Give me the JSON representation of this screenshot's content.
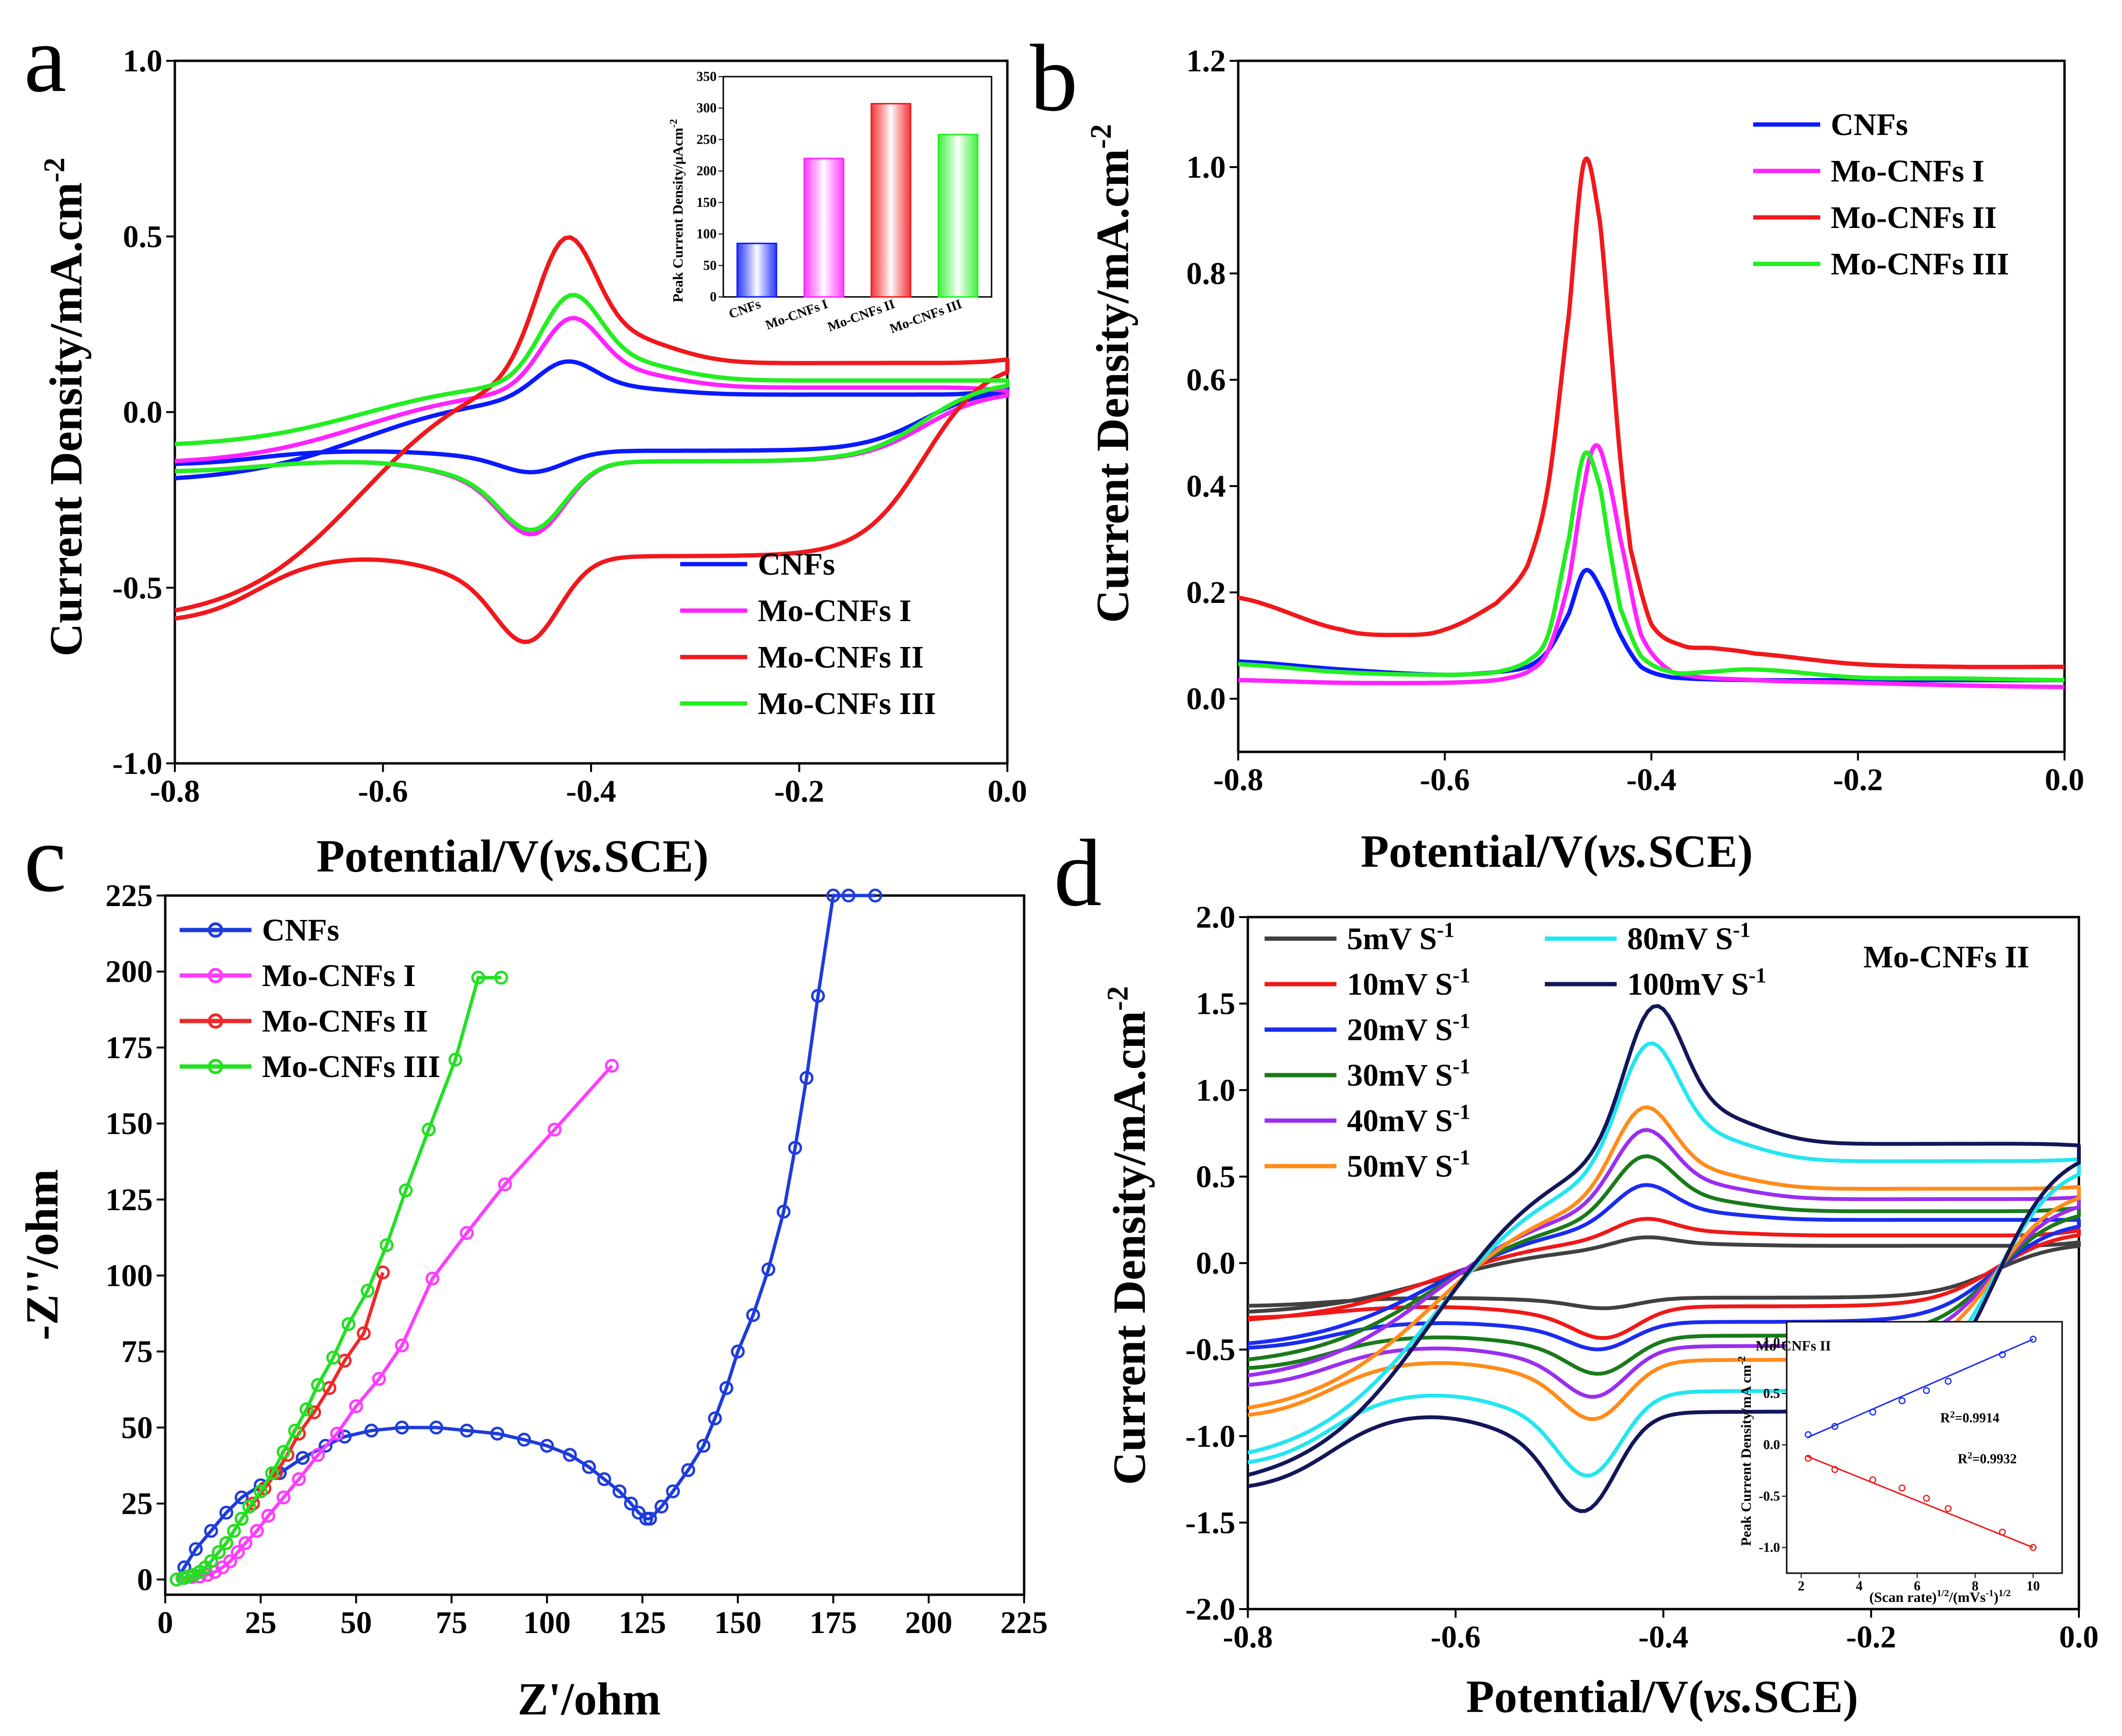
{
  "chart_data": [
    {
      "panel": "a",
      "type": "line",
      "xlabel": "Potential/V(vs.SCE)",
      "ylabel": "Current Density/mA.cm-2",
      "xlim": [
        -0.8,
        0.0
      ],
      "ylim": [
        -1.0,
        1.0
      ],
      "xticks": [
        -0.8,
        -0.6,
        -0.4,
        -0.2,
        0.0
      ],
      "xtick_labels": [
        "-0.8",
        "-0.6",
        "-0.4",
        "-0.2",
        "0.0"
      ],
      "yticks": [
        -1.0,
        -0.5,
        0.0,
        0.5,
        1.0
      ],
      "ytick_labels": [
        "-1.0",
        "-0.5",
        "0.0",
        "0.5",
        "1.0"
      ],
      "legend": {
        "placement": "bottom-right",
        "entries": [
          "CNFs",
          "Mo-CNFs I",
          "Mo-CNFs II",
          "Mo-CNFs III"
        ]
      },
      "series": [
        {
          "name": "CNFs",
          "color": "#0a1aff",
          "anodic_peak": {
            "x": -0.425,
            "y": 0.13
          },
          "cathodic_peak": {
            "x": -0.455,
            "y": -0.16
          },
          "forward_start": -0.2,
          "forward_end": 0.07,
          "forward_baseline": 0.05,
          "reverse_baseline": -0.11,
          "reverse_end": -0.15
        },
        {
          "name": "Mo-CNFs I",
          "color": "#ff22ff",
          "anodic_peak": {
            "x": -0.42,
            "y": 0.24
          },
          "cathodic_peak": {
            "x": -0.455,
            "y": -0.31
          },
          "forward_start": -0.15,
          "forward_end": 0.06,
          "forward_baseline": 0.07,
          "reverse_baseline": -0.14,
          "reverse_end": -0.17
        },
        {
          "name": "Mo-CNFs II",
          "color": "#f0181c",
          "anodic_peak": {
            "x": -0.425,
            "y": 0.445
          },
          "cathodic_peak": {
            "x": -0.46,
            "y": -0.61
          },
          "forward_start": -0.6,
          "forward_end": 0.15,
          "forward_baseline": 0.14,
          "reverse_baseline": -0.41,
          "reverse_end": -0.6
        },
        {
          "name": "Mo-CNFs III",
          "color": "#22ee22",
          "anodic_peak": {
            "x": -0.42,
            "y": 0.3
          },
          "cathodic_peak": {
            "x": -0.455,
            "y": -0.3
          },
          "forward_start": -0.1,
          "forward_end": 0.09,
          "forward_baseline": 0.09,
          "reverse_baseline": -0.14,
          "reverse_end": -0.17
        }
      ],
      "inset": {
        "type": "bar",
        "ylabel": "Peak Current Density/μAcm-2",
        "ylim": [
          0,
          350
        ],
        "yticks": [
          0,
          50,
          100,
          150,
          200,
          250,
          300,
          350
        ],
        "categories": [
          "CNFs",
          "Mo-CNFs I",
          "Mo-CNFs II",
          "Mo-CNFs III"
        ],
        "values": [
          85,
          220,
          307,
          258
        ],
        "colors": [
          "#0a1aff",
          "#ff22ff",
          "#f0181c",
          "#22ee22"
        ]
      }
    },
    {
      "panel": "b",
      "type": "line",
      "xlabel": "Potential/V(vs.SCE)",
      "ylabel": "Current Density/mA.cm-2",
      "xlim": [
        -0.8,
        0.0
      ],
      "ylim": [
        -0.1,
        1.2
      ],
      "xticks": [
        -0.8,
        -0.6,
        -0.4,
        -0.2,
        0.0
      ],
      "xtick_labels": [
        "-0.8",
        "-0.6",
        "-0.4",
        "-0.2",
        "0.0"
      ],
      "yticks": [
        0.0,
        0.2,
        0.4,
        0.6,
        0.8,
        1.0,
        1.2
      ],
      "ytick_labels": [
        "0.0",
        "0.2",
        "0.4",
        "0.6",
        "0.8",
        "1.0",
        "1.2"
      ],
      "legend": {
        "placement": "top-right",
        "entries": [
          "CNFs",
          "Mo-CNFs I",
          "Mo-CNFs II",
          "Mo-CNFs III"
        ]
      },
      "series": [
        {
          "name": "CNFs",
          "color": "#0a1aff",
          "x": [
            -0.8,
            -0.7,
            -0.6,
            -0.55,
            -0.52,
            -0.5,
            -0.48,
            -0.465,
            -0.45,
            -0.43,
            -0.41,
            -0.38,
            -0.3,
            -0.2,
            -0.1,
            0.0
          ],
          "y": [
            0.07,
            0.055,
            0.045,
            0.05,
            0.06,
            0.09,
            0.16,
            0.24,
            0.21,
            0.12,
            0.06,
            0.04,
            0.035,
            0.035,
            0.035,
            0.035
          ]
        },
        {
          "name": "Mo-CNFs I",
          "color": "#ff22ff",
          "x": [
            -0.8,
            -0.7,
            -0.6,
            -0.55,
            -0.52,
            -0.5,
            -0.48,
            -0.465,
            -0.455,
            -0.445,
            -0.43,
            -0.41,
            -0.38,
            -0.3,
            -0.2,
            -0.1,
            0.0
          ],
          "y": [
            0.035,
            0.03,
            0.03,
            0.035,
            0.05,
            0.09,
            0.22,
            0.4,
            0.475,
            0.44,
            0.3,
            0.12,
            0.05,
            0.035,
            0.03,
            0.025,
            0.022
          ]
        },
        {
          "name": "Mo-CNFs II",
          "color": "#f0181c",
          "x": [
            -0.8,
            -0.7,
            -0.64,
            -0.6,
            -0.55,
            -0.52,
            -0.5,
            -0.48,
            -0.465,
            -0.45,
            -0.44,
            -0.43,
            -0.42,
            -0.4,
            -0.37,
            -0.34,
            -0.3,
            -0.2,
            -0.1,
            0.0
          ],
          "y": [
            0.19,
            0.13,
            0.12,
            0.13,
            0.18,
            0.25,
            0.4,
            0.72,
            1.01,
            0.9,
            0.68,
            0.45,
            0.28,
            0.14,
            0.1,
            0.095,
            0.085,
            0.065,
            0.06,
            0.06
          ]
        },
        {
          "name": "Mo-CNFs III",
          "color": "#22ee22",
          "x": [
            -0.8,
            -0.7,
            -0.6,
            -0.55,
            -0.52,
            -0.5,
            -0.48,
            -0.465,
            -0.45,
            -0.44,
            -0.43,
            -0.41,
            -0.38,
            -0.35,
            -0.3,
            -0.2,
            -0.1,
            0.0
          ],
          "y": [
            0.065,
            0.05,
            0.045,
            0.05,
            0.07,
            0.12,
            0.3,
            0.46,
            0.4,
            0.28,
            0.17,
            0.08,
            0.05,
            0.05,
            0.055,
            0.04,
            0.038,
            0.035
          ]
        }
      ]
    },
    {
      "panel": "c",
      "type": "scatter",
      "xlabel": "Z'/ohm",
      "ylabel": "-Z''/ohm",
      "xlim": [
        0,
        225
      ],
      "ylim": [
        -5,
        225
      ],
      "xticks": [
        0,
        25,
        50,
        75,
        100,
        125,
        150,
        175,
        200,
        225
      ],
      "xtick_labels": [
        "0",
        "25",
        "50",
        "75",
        "100",
        "125",
        "150",
        "175",
        "200",
        "225"
      ],
      "yticks": [
        0,
        25,
        50,
        75,
        100,
        125,
        150,
        175,
        200,
        225
      ],
      "ytick_labels": [
        "0",
        "25",
        "50",
        "75",
        "100",
        "125",
        "150",
        "175",
        "200",
        "225"
      ],
      "legend": {
        "placement": "top-left",
        "entries": [
          "CNFs",
          "Mo-CNFs I",
          "Mo-CNFs II",
          "Mo-CNFs III"
        ]
      },
      "series": [
        {
          "name": "CNFs",
          "color": "#1e3cdc",
          "x": [
            3,
            5,
            8,
            12,
            16,
            20,
            25,
            30,
            36,
            42,
            47,
            54,
            62,
            71,
            79,
            87,
            94,
            100,
            106,
            111,
            115,
            119,
            122,
            124,
            126,
            127,
            130,
            133,
            137,
            141,
            144,
            147,
            150,
            154,
            158,
            162,
            165,
            168,
            171,
            175,
            179,
            186
          ],
          "y": [
            0,
            4,
            10,
            16,
            22,
            27,
            31,
            35,
            40,
            44,
            47,
            49,
            50,
            50,
            49,
            48,
            46,
            44,
            41,
            37,
            33,
            29,
            25,
            22,
            20,
            20,
            24,
            29,
            36,
            44,
            53,
            63,
            75,
            87,
            102,
            121,
            142,
            165,
            192,
            225,
            225,
            225
          ]
        },
        {
          "name": "Mo-CNFs I",
          "color": "#ff3cff",
          "x": [
            3,
            5,
            7,
            9,
            11,
            13,
            15,
            17,
            19,
            21,
            24,
            27,
            31,
            35,
            40,
            45,
            50,
            56,
            62,
            70,
            79,
            89,
            102,
            117
          ],
          "y": [
            0,
            0.5,
            0.8,
            1,
            1.5,
            2.5,
            4,
            6,
            9,
            12,
            16,
            21,
            27,
            33,
            41,
            48,
            57,
            66,
            77,
            99,
            114,
            130,
            148,
            169
          ]
        },
        {
          "name": "Mo-CNFs II",
          "color": "#f02828",
          "x": [
            3,
            4.5,
            6,
            7.5,
            9,
            10.5,
            12,
            14,
            16,
            18,
            20,
            23,
            26,
            29,
            32,
            35,
            39,
            43,
            47,
            52,
            57
          ],
          "y": [
            0,
            0.5,
            1,
            1.5,
            2.5,
            4,
            6,
            9,
            12,
            16,
            20,
            25,
            30,
            35,
            41,
            48,
            55,
            63,
            72,
            81,
            101
          ]
        },
        {
          "name": "Mo-CNFs III",
          "color": "#22e022",
          "x": [
            3,
            4.5,
            6,
            7.5,
            9,
            10.5,
            12,
            14,
            16,
            18,
            20,
            22,
            25,
            28,
            31,
            34,
            37,
            40,
            44,
            48,
            53,
            58,
            63,
            69,
            76,
            82,
            88
          ],
          "y": [
            0,
            0.5,
            1,
            1.5,
            2.5,
            4,
            6,
            9,
            12,
            16,
            20,
            24,
            29,
            35,
            42,
            49,
            56,
            64,
            73,
            84,
            95,
            110,
            128,
            148,
            171,
            198,
            198
          ]
        }
      ]
    },
    {
      "panel": "d",
      "type": "line",
      "annotation": "Mo-CNFs II",
      "xlabel": "Potential/V(vs.SCE)",
      "ylabel": "Current Density/mA.cm-2",
      "xlim": [
        -0.8,
        0.0
      ],
      "ylim": [
        -2.0,
        2.0
      ],
      "xticks": [
        -0.8,
        -0.6,
        -0.4,
        -0.2,
        0.0
      ],
      "xtick_labels": [
        "-0.8",
        "-0.6",
        "-0.4",
        "-0.2",
        "0.0"
      ],
      "yticks": [
        -2.0,
        -1.5,
        -1.0,
        -0.5,
        0.0,
        0.5,
        1.0,
        1.5,
        2.0
      ],
      "ytick_labels": [
        "-2.0",
        "-1.5",
        "-1.0",
        "-0.5",
        "0.0",
        "0.5",
        "1.0",
        "1.5",
        "2.0"
      ],
      "legend": {
        "placement": "top-left",
        "entries": [
          "5mV S-1",
          "10mV S-1",
          "20mV S-1",
          "30mV S-1",
          "40mV S-1",
          "50mV S-1",
          "80mV S-1",
          "100mV S-1"
        ]
      },
      "series": [
        {
          "name": "5mV S-1",
          "color": "#404040",
          "anodic_peak": {
            "x": -0.42,
            "y": 0.14
          },
          "cathodic_peak": {
            "x": -0.455,
            "y": -0.25
          },
          "forward_start": -0.3,
          "forward_end": 0.12,
          "forward_baseline": 0.1,
          "reverse_baseline": -0.2,
          "reverse_end": -0.25
        },
        {
          "name": "10mV S-1",
          "color": "#f01818",
          "anodic_peak": {
            "x": -0.42,
            "y": 0.24
          },
          "cathodic_peak": {
            "x": -0.455,
            "y": -0.4
          },
          "forward_start": -0.35,
          "forward_end": 0.19,
          "forward_baseline": 0.16,
          "reverse_baseline": -0.25,
          "reverse_end": -0.32
        },
        {
          "name": "20mV S-1",
          "color": "#1a2cf0",
          "anodic_peak": {
            "x": -0.42,
            "y": 0.42
          },
          "cathodic_peak": {
            "x": -0.46,
            "y": -0.47
          },
          "forward_start": -0.5,
          "forward_end": 0.25,
          "forward_baseline": 0.25,
          "reverse_baseline": -0.34,
          "reverse_end": -0.5
        },
        {
          "name": "30mV S-1",
          "color": "#1a7a1a",
          "anodic_peak": {
            "x": -0.42,
            "y": 0.57
          },
          "cathodic_peak": {
            "x": -0.46,
            "y": -0.6
          },
          "forward_start": -0.6,
          "forward_end": 0.32,
          "forward_baseline": 0.3,
          "reverse_baseline": -0.42,
          "reverse_end": -0.62
        },
        {
          "name": "40mV S-1",
          "color": "#9a2ef0",
          "anodic_peak": {
            "x": -0.42,
            "y": 0.71
          },
          "cathodic_peak": {
            "x": -0.465,
            "y": -0.72
          },
          "forward_start": -0.7,
          "forward_end": 0.38,
          "forward_baseline": 0.37,
          "reverse_baseline": -0.48,
          "reverse_end": -0.72
        },
        {
          "name": "50mV S-1",
          "color": "#ff8c1a",
          "anodic_peak": {
            "x": -0.42,
            "y": 0.83
          },
          "cathodic_peak": {
            "x": -0.465,
            "y": -0.84
          },
          "forward_start": -0.9,
          "forward_end": 0.44,
          "forward_baseline": 0.43,
          "reverse_baseline": -0.56,
          "reverse_end": -0.9
        },
        {
          "name": "80mV S-1",
          "color": "#22e6f0",
          "anodic_peak": {
            "x": -0.415,
            "y": 1.17
          },
          "cathodic_peak": {
            "x": -0.47,
            "y": -1.14
          },
          "forward_start": -1.18,
          "forward_end": 0.6,
          "forward_baseline": 0.59,
          "reverse_baseline": -0.74,
          "reverse_end": -1.18
        },
        {
          "name": "100mV S-1",
          "color": "#14165a",
          "anodic_peak": {
            "x": -0.41,
            "y": 1.37
          },
          "cathodic_peak": {
            "x": -0.475,
            "y": -1.33
          },
          "forward_start": -1.32,
          "forward_end": 0.68,
          "forward_baseline": 0.69,
          "reverse_baseline": -0.86,
          "reverse_end": -1.32
        }
      ],
      "inset": {
        "type": "scatter",
        "title": "Mo-CNFs II",
        "xlabel": "(Scan rate)1/2/(mVs-1)1/2",
        "ylabel": "Peak Current Density/mA cm-2",
        "xlim": [
          1.5,
          11
        ],
        "ylim": [
          -1.25,
          1.2
        ],
        "xticks": [
          2,
          4,
          6,
          8,
          10
        ],
        "yticks": [
          -1.0,
          -0.5,
          0.0,
          0.5,
          1.0
        ],
        "ytick_labels": [
          "-1.0",
          "-0.5",
          "0.0",
          "0.5",
          "1.0"
        ],
        "anodic": {
          "color": "#1a2cf0",
          "x": [
            2.24,
            3.16,
            4.47,
            5.48,
            6.32,
            7.07,
            8.94,
            10.0
          ],
          "y": [
            0.1,
            0.18,
            0.32,
            0.43,
            0.53,
            0.62,
            0.88,
            1.03
          ],
          "fit": [
            [
              2.2,
              0.07
            ],
            [
              10.0,
              1.03
            ]
          ],
          "r2_label": "R2=0.9914"
        },
        "cathodic": {
          "color": "#f01818",
          "x": [
            2.24,
            3.16,
            4.47,
            5.48,
            6.32,
            7.07,
            8.94,
            10.0
          ],
          "y": [
            -0.13,
            -0.24,
            -0.34,
            -0.42,
            -0.52,
            -0.62,
            -0.85,
            -1.0
          ],
          "fit": [
            [
              2.2,
              -0.11
            ],
            [
              10.0,
              -1.0
            ]
          ],
          "r2_label": "R2=0.9932"
        }
      }
    }
  ],
  "panel_letters": [
    "a",
    "b",
    "c",
    "d"
  ],
  "labels": {
    "a_xlabel_main": "Potential/V(",
    "a_xlabel_italic": "vs.",
    "a_xlabel_end": "SCE)",
    "ylabel_main": "Current Density/mA.cm",
    "ylabel_sup": "-2",
    "c_xlabel": "Z'/ohm",
    "c_ylabel": "-Z''/ohm",
    "inset_a_ylabel_main": "Peak Current Density/μAcm",
    "inset_a_ylabel_sup": "-2",
    "inset_d_title": "Mo-CNFs II",
    "inset_d_ylabel_main": "Peak Current Density/mA cm",
    "inset_d_ylabel_sup": "-2",
    "inset_d_xlabel_main": "(Scan rate)",
    "inset_d_xlabel_sup1": "1/2",
    "inset_d_xlabel_mid": "/(mVs",
    "inset_d_xlabel_sup2": "-1",
    "inset_d_xlabel_end": ")",
    "inset_d_xlabel_sup3": "1/2",
    "d_annotation": "Mo-CNFs II"
  }
}
